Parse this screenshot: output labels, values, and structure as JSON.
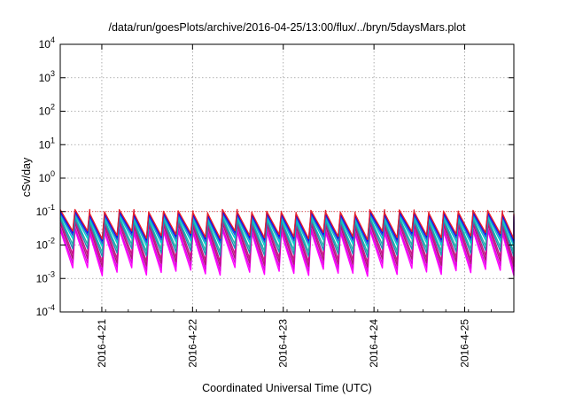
{
  "chart_data": {
    "type": "line",
    "title": "/data/run/goesPlots/archive/2016-04-25/13:00/flux/../bryn/5daysMars.plot",
    "xlabel": "Coordinated Universal Time (UTC)",
    "ylabel": "cSv/day",
    "yscale": "log",
    "ylim": [
      0.0001,
      10000
    ],
    "y_ticks": [
      {
        "base": "10",
        "exp": "-4",
        "value": 0.0001
      },
      {
        "base": "10",
        "exp": "-3",
        "value": 0.001
      },
      {
        "base": "10",
        "exp": "-2",
        "value": 0.01
      },
      {
        "base": "10",
        "exp": "-1",
        "value": 0.1
      },
      {
        "base": "10",
        "exp": "0",
        "value": 1
      },
      {
        "base": "10",
        "exp": "1",
        "value": 10
      },
      {
        "base": "10",
        "exp": "2",
        "value": 100
      },
      {
        "base": "10",
        "exp": "3",
        "value": 1000
      },
      {
        "base": "10",
        "exp": "4",
        "value": 10000
      }
    ],
    "xlim": [
      "2016-04-20 13:00",
      "2016-04-25 13:00"
    ],
    "x_ticks": [
      "2016-4-21",
      "2016-4-22",
      "2016-4-23",
      "2016-4-24",
      "2016-4-25"
    ],
    "grid": true,
    "reference_line": 0.1,
    "cycle_hours": 3.9,
    "series": [
      {
        "color": "#ff00ff",
        "peak": 0.025,
        "trough": 0.0016
      },
      {
        "color": "#e000e0",
        "peak": 0.03,
        "trough": 0.0022
      },
      {
        "color": "#b0177a",
        "peak": 0.04,
        "trough": 0.003
      },
      {
        "color": "#c71585",
        "peak": 0.05,
        "trough": 0.004
      },
      {
        "color": "#1e90b4",
        "peak": 0.055,
        "trough": 0.006
      },
      {
        "color": "#20b2aa",
        "peak": 0.06,
        "trough": 0.008
      },
      {
        "color": "#00ced1",
        "peak": 0.07,
        "trough": 0.012
      },
      {
        "color": "#2f4fd8",
        "peak": 0.08,
        "trough": 0.015
      },
      {
        "color": "#0000ff",
        "peak": 0.09,
        "trough": 0.018
      },
      {
        "color": "#e8202a",
        "peak": 0.1,
        "trough": 0.02
      }
    ]
  }
}
